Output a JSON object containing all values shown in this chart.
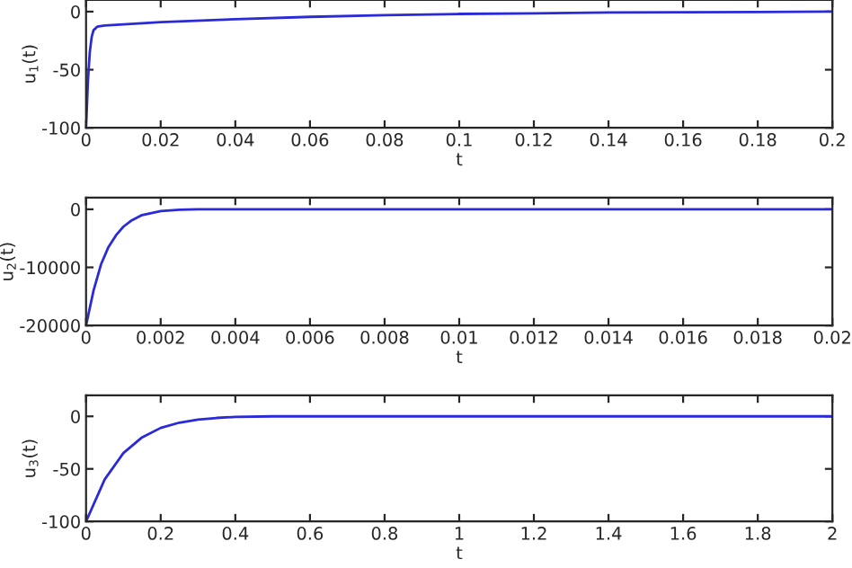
{
  "chart_data": [
    {
      "type": "line",
      "xlabel": "t",
      "ylabel": "u$_{1}$(t)",
      "xlim": [
        0,
        0.2
      ],
      "ylim": [
        -100,
        10
      ],
      "xticks": [
        0,
        0.02,
        0.04,
        0.06,
        0.08,
        0.1,
        0.12,
        0.14,
        0.16,
        0.18,
        0.2
      ],
      "yticks": [
        -100,
        -50,
        0
      ],
      "grid": false,
      "legend": false,
      "x": [
        0,
        0.0005,
        0.001,
        0.0015,
        0.002,
        0.003,
        0.005,
        0.01,
        0.02,
        0.04,
        0.06,
        0.08,
        0.1,
        0.12,
        0.14,
        0.16,
        0.18,
        0.2
      ],
      "series": [
        {
          "color": "#2a2ad8",
          "values": [
            -100,
            -60,
            -35,
            -22,
            -16,
            -13,
            -12,
            -11,
            -9,
            -6.5,
            -4.5,
            -3,
            -2,
            -1.5,
            -0.8,
            -0.5,
            -0.3,
            0
          ]
        }
      ]
    },
    {
      "type": "line",
      "xlabel": "t",
      "ylabel": "u$_{2}$(t)",
      "xlim": [
        0,
        0.02
      ],
      "ylim": [
        -20000,
        2000
      ],
      "xticks": [
        0,
        0.002,
        0.004,
        0.006,
        0.008,
        0.01,
        0.012,
        0.014,
        0.016,
        0.018,
        0.02
      ],
      "yticks": [
        -20000,
        -10000,
        0
      ],
      "grid": false,
      "legend": false,
      "x": [
        0,
        0.0002,
        0.0004,
        0.0006,
        0.0008,
        0.001,
        0.0012,
        0.0015,
        0.002,
        0.0025,
        0.003,
        0.004,
        0.01,
        0.02
      ],
      "series": [
        {
          "color": "#2a2ad8",
          "values": [
            -20000,
            -14000,
            -9500,
            -6500,
            -4500,
            -3000,
            -2000,
            -1000,
            -300,
            -80,
            0,
            0,
            0,
            0
          ]
        }
      ]
    },
    {
      "type": "line",
      "xlabel": "t",
      "ylabel": "u$_{3}$(t)",
      "xlim": [
        0,
        2
      ],
      "ylim": [
        -100,
        20
      ],
      "xticks": [
        0,
        0.2,
        0.4,
        0.6,
        0.8,
        1,
        1.2,
        1.4,
        1.6,
        1.8,
        2
      ],
      "yticks": [
        -100,
        -50,
        0
      ],
      "grid": false,
      "legend": false,
      "x": [
        0,
        0.05,
        0.1,
        0.15,
        0.2,
        0.25,
        0.3,
        0.35,
        0.4,
        0.5,
        1,
        2
      ],
      "series": [
        {
          "color": "#2a2ad8",
          "values": [
            -100,
            -60,
            -35,
            -20,
            -11,
            -6,
            -3,
            -1.5,
            -0.5,
            0,
            0,
            0
          ]
        }
      ]
    }
  ]
}
